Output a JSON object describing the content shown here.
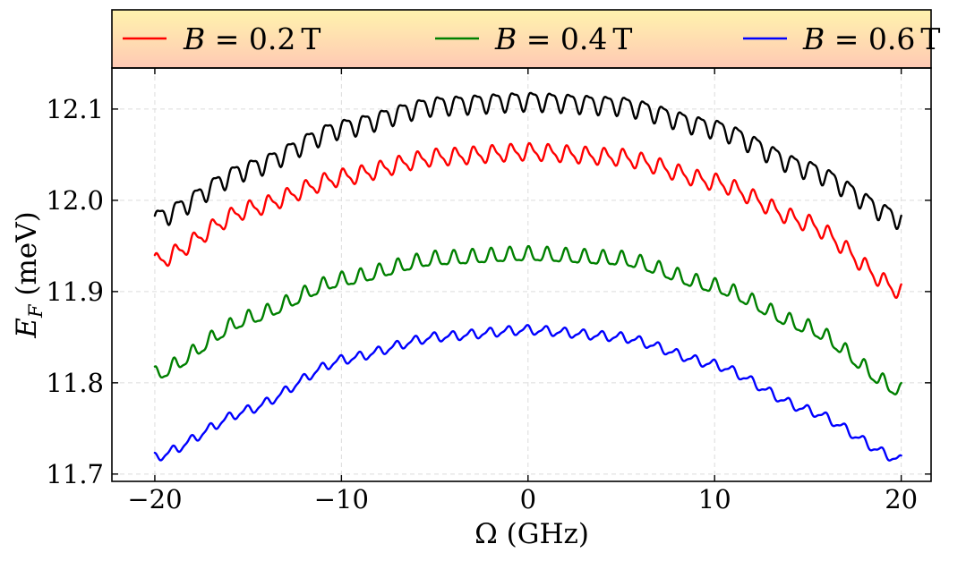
{
  "chart_data": {
    "type": "line",
    "title": "",
    "xlabel": "Ω (GHz)",
    "ylabel": "E_F (meV)",
    "xlim": [
      -22.3,
      21.6
    ],
    "ylim": [
      11.692,
      12.145
    ],
    "xticks": [
      -20,
      -10,
      0,
      10,
      20
    ],
    "xtick_labels": [
      "−20",
      "−10",
      "0",
      "10",
      "20"
    ],
    "yticks": [
      11.7,
      11.8,
      11.9,
      12.0,
      12.1
    ],
    "ytick_labels": [
      "11.7",
      "11.8",
      "11.9",
      "12.0",
      "12.1"
    ],
    "grid": true,
    "legend_position": "top, horizontal box above plot",
    "ripple_period_ghz": 1.0,
    "series": [
      {
        "name": "",
        "color": "#000000",
        "x": [
          -20,
          -15,
          -10,
          -5,
          0,
          5,
          10,
          15,
          20
        ],
        "y": [
          11.98,
          12.035,
          12.08,
          12.105,
          12.11,
          12.105,
          12.08,
          12.035,
          11.98
        ],
        "ripple_amplitude": 0.013
      },
      {
        "name": "B = 0.2 T",
        "color": "#ff0000",
        "x": [
          -20,
          -15,
          -10,
          -5,
          0,
          5,
          10,
          15,
          20
        ],
        "y": [
          11.932,
          11.99,
          12.025,
          12.047,
          12.053,
          12.047,
          12.02,
          11.975,
          11.9
        ],
        "ripple_amplitude": 0.011
      },
      {
        "name": "B = 0.4 T",
        "color": "#008000",
        "x": [
          -20,
          -15,
          -10,
          -5,
          0,
          5,
          10,
          15,
          20
        ],
        "y": [
          11.808,
          11.87,
          11.912,
          11.935,
          11.94,
          11.935,
          11.905,
          11.86,
          11.79
        ],
        "ripple_amplitude": 0.01
      },
      {
        "name": "B = 0.6 T",
        "color": "#0000ff",
        "x": [
          -20,
          -15,
          -10,
          -5,
          0,
          5,
          10,
          15,
          20
        ],
        "y": [
          11.718,
          11.77,
          11.825,
          11.85,
          11.858,
          11.85,
          11.82,
          11.77,
          11.715
        ],
        "ripple_amplitude": 0.006
      }
    ]
  },
  "legend": {
    "entries": [
      {
        "var": "B",
        "eq": " = ",
        "value": "0.2",
        "unit": "T",
        "color": "#ff0000"
      },
      {
        "var": "B",
        "eq": " = ",
        "value": "0.4",
        "unit": "T",
        "color": "#008000"
      },
      {
        "var": "B",
        "eq": " = ",
        "value": "0.6",
        "unit": "T",
        "color": "#0000ff"
      }
    ]
  },
  "axes": {
    "x_label": "Ω (GHz)",
    "y_label_var": "E",
    "y_label_sub": "F",
    "y_label_unit": " (meV)"
  }
}
